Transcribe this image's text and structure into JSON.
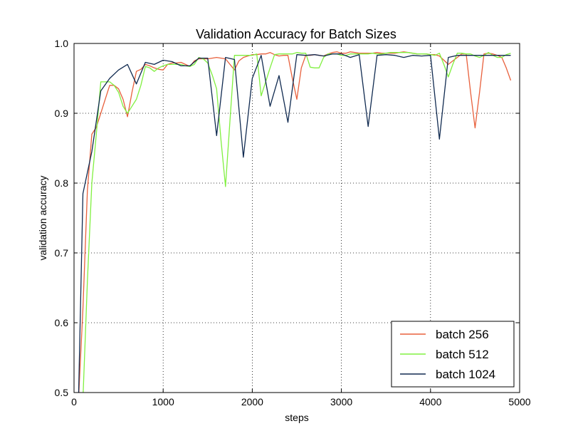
{
  "chart_data": {
    "type": "line",
    "title": "Validation Accuracy for Batch Sizes",
    "xlabel": "steps",
    "ylabel": "validation accuracy",
    "xlim": [
      0,
      5000
    ],
    "ylim": [
      0.5,
      1.0
    ],
    "xticks": [
      0,
      1000,
      2000,
      3000,
      4000,
      5000
    ],
    "yticks": [
      0.5,
      0.6,
      0.7,
      0.8,
      0.9,
      1.0
    ],
    "xtick_labels": [
      "0",
      "1000",
      "2000",
      "3000",
      "4000",
      "5000"
    ],
    "ytick_labels": [
      "0.5",
      "0.6",
      "0.7",
      "0.8",
      "0.9",
      "1.0"
    ],
    "grid": true,
    "legend_position": "bottom-right",
    "series": [
      {
        "name": "batch 256",
        "color": "#e8603c",
        "x": [
          50,
          100,
          150,
          200,
          250,
          300,
          350,
          400,
          450,
          500,
          550,
          600,
          650,
          700,
          750,
          800,
          850,
          900,
          950,
          1000,
          1050,
          1100,
          1150,
          1200,
          1250,
          1300,
          1350,
          1400,
          1450,
          1500,
          1550,
          1600,
          1650,
          1700,
          1750,
          1800,
          1850,
          1900,
          1950,
          2000,
          2050,
          2100,
          2150,
          2200,
          2250,
          2300,
          2350,
          2400,
          2450,
          2500,
          2550,
          2600,
          2650,
          2700,
          2750,
          2800,
          2850,
          2900,
          2950,
          3000,
          3050,
          3100,
          3150,
          3200,
          3250,
          3300,
          3350,
          3400,
          3450,
          3500,
          3550,
          3600,
          3650,
          3700,
          3750,
          3800,
          3850,
          3900,
          3950,
          4000,
          4050,
          4100,
          4150,
          4200,
          4250,
          4300,
          4350,
          4400,
          4450,
          4500,
          4550,
          4600,
          4650,
          4700,
          4750,
          4800,
          4850,
          4900
        ],
        "values": [
          0.49,
          0.62,
          0.79,
          0.87,
          0.88,
          0.9,
          0.92,
          0.94,
          0.94,
          0.935,
          0.92,
          0.895,
          0.93,
          0.96,
          0.963,
          0.97,
          0.968,
          0.965,
          0.963,
          0.962,
          0.97,
          0.972,
          0.972,
          0.973,
          0.97,
          0.967,
          0.975,
          0.978,
          0.978,
          0.978,
          0.979,
          0.98,
          0.979,
          0.978,
          0.97,
          0.962,
          0.975,
          0.98,
          0.982,
          0.984,
          0.984,
          0.985,
          0.985,
          0.987,
          0.984,
          0.982,
          0.983,
          0.983,
          0.95,
          0.92,
          0.965,
          0.983,
          0.983,
          0.984,
          0.983,
          0.982,
          0.985,
          0.987,
          0.988,
          0.986,
          0.986,
          0.988,
          0.987,
          0.986,
          0.986,
          0.986,
          0.986,
          0.987,
          0.986,
          0.986,
          0.986,
          0.986,
          0.987,
          0.988,
          0.987,
          0.986,
          0.985,
          0.985,
          0.985,
          0.984,
          0.984,
          0.982,
          0.976,
          0.97,
          0.975,
          0.98,
          0.985,
          0.985,
          0.93,
          0.879,
          0.93,
          0.985,
          0.986,
          0.985,
          0.983,
          0.98,
          0.965,
          0.947
        ]
      },
      {
        "name": "batch 512",
        "color": "#80f040",
        "x": [
          100,
          150,
          200,
          250,
          300,
          350,
          400,
          450,
          500,
          550,
          600,
          650,
          700,
          750,
          800,
          850,
          900,
          950,
          1000,
          1050,
          1100,
          1150,
          1200,
          1250,
          1300,
          1350,
          1400,
          1450,
          1500,
          1550,
          1600,
          1650,
          1700,
          1750,
          1800,
          1850,
          1900,
          1950,
          2000,
          2050,
          2100,
          2150,
          2200,
          2250,
          2300,
          2350,
          2400,
          2450,
          2500,
          2550,
          2600,
          2650,
          2700,
          2750,
          2800,
          2850,
          2900,
          2950,
          3000,
          3050,
          3100,
          3150,
          3200,
          3250,
          3300,
          3350,
          3400,
          3450,
          3500,
          3550,
          3600,
          3650,
          3700,
          3750,
          3800,
          3850,
          3900,
          3950,
          4000,
          4050,
          4100,
          4150,
          4200,
          4250,
          4300,
          4350,
          4400,
          4450,
          4500,
          4550,
          4600,
          4650,
          4700,
          4750,
          4800,
          4850,
          4900
        ],
        "values": [
          0.49,
          0.66,
          0.8,
          0.87,
          0.945,
          0.945,
          0.945,
          0.94,
          0.93,
          0.91,
          0.9,
          0.91,
          0.92,
          0.94,
          0.967,
          0.965,
          0.96,
          0.965,
          0.968,
          0.97,
          0.97,
          0.97,
          0.97,
          0.968,
          0.967,
          0.97,
          0.98,
          0.978,
          0.972,
          0.955,
          0.935,
          0.86,
          0.795,
          0.89,
          0.983,
          0.983,
          0.983,
          0.983,
          0.983,
          0.985,
          0.925,
          0.945,
          0.965,
          0.984,
          0.985,
          0.985,
          0.985,
          0.985,
          0.987,
          0.986,
          0.986,
          0.966,
          0.965,
          0.965,
          0.98,
          0.985,
          0.985,
          0.985,
          0.983,
          0.983,
          0.985,
          0.985,
          0.985,
          0.985,
          0.985,
          0.986,
          0.985,
          0.985,
          0.986,
          0.987,
          0.987,
          0.987,
          0.987,
          0.987,
          0.986,
          0.985,
          0.985,
          0.985,
          0.984,
          0.983,
          0.986,
          0.97,
          0.952,
          0.97,
          0.986,
          0.986,
          0.985,
          0.985,
          0.982,
          0.98,
          0.983,
          0.987,
          0.983,
          0.98,
          0.98,
          0.984,
          0.986
        ]
      },
      {
        "name": "batch 1024",
        "color": "#102a50",
        "x": [
          50,
          100,
          200,
          300,
          400,
          500,
          600,
          700,
          800,
          900,
          1000,
          1100,
          1200,
          1300,
          1400,
          1500,
          1600,
          1700,
          1800,
          1900,
          2000,
          2100,
          2200,
          2300,
          2400,
          2500,
          2600,
          2700,
          2800,
          2900,
          3000,
          3100,
          3200,
          3300,
          3400,
          3500,
          3600,
          3700,
          3800,
          3900,
          4000,
          4100,
          4200,
          4300,
          4400,
          4500,
          4600,
          4700,
          4800,
          4900
        ],
        "values": [
          0.49,
          0.785,
          0.845,
          0.932,
          0.95,
          0.962,
          0.97,
          0.942,
          0.973,
          0.97,
          0.976,
          0.974,
          0.968,
          0.968,
          0.979,
          0.979,
          0.868,
          0.98,
          0.977,
          0.837,
          0.95,
          0.983,
          0.91,
          0.954,
          0.887,
          0.984,
          0.983,
          0.984,
          0.982,
          0.985,
          0.985,
          0.98,
          0.984,
          0.881,
          0.983,
          0.984,
          0.983,
          0.98,
          0.983,
          0.982,
          0.983,
          0.863,
          0.98,
          0.983,
          0.983,
          0.983,
          0.983,
          0.983,
          0.983,
          0.983
        ]
      }
    ]
  }
}
